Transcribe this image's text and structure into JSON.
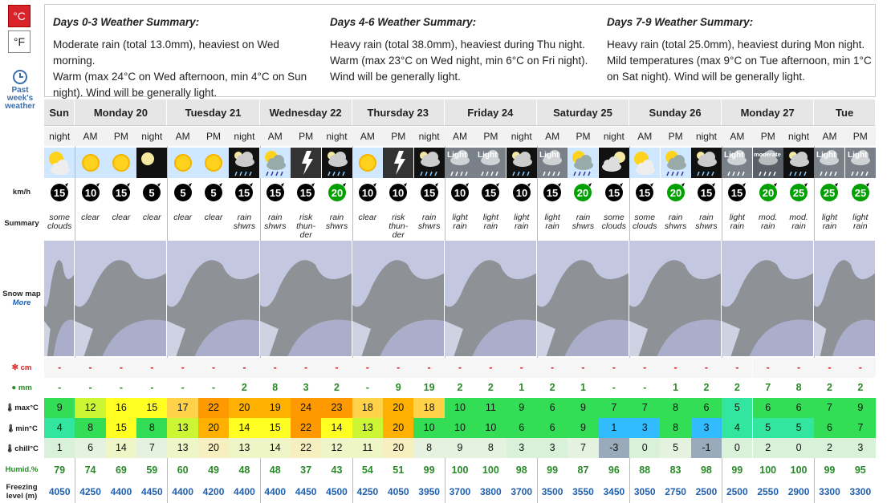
{
  "units": {
    "celsius": "°C",
    "fahrenheit": "°F"
  },
  "past_link": {
    "line1": "Past",
    "line2": "week's",
    "line3": "weather"
  },
  "row_labels": {
    "wind": "km/h",
    "summary": "Summary",
    "snowmap": "Snow map",
    "more": "More",
    "snow": "cm",
    "rain": "mm",
    "max": "max°C",
    "min": "min°C",
    "chill": "chill°C",
    "humid": "Humid.%",
    "freezing1": "Freezing",
    "freezing2": "level (m)"
  },
  "summaries": [
    {
      "title": "Days 0-3 Weather Summary:",
      "lines": [
        "Moderate rain (total 13.0mm), heaviest on Wed morning.",
        "Warm (max 24°C on Wed afternoon, min 4°C on Sun",
        "night). Wind will be generally light."
      ]
    },
    {
      "title": "Days 4-6 Weather Summary:",
      "lines": [
        "Heavy rain (total 38.0mm), heaviest during Thu night.",
        "Warm (max 23°C on Wed night, min 6°C on Fri night).",
        "Wind will be generally light."
      ]
    },
    {
      "title": "Days 7-9 Weather Summary:",
      "lines": [
        "Heavy rain (total 25.0mm), heaviest during Mon night.",
        "Mild temperatures (max 9°C on Tue afternoon, min 1°C",
        "on Sat night). Wind will be generally light."
      ]
    }
  ],
  "days": [
    {
      "name": "Sun",
      "periods": [
        "night"
      ]
    },
    {
      "name": "Monday 20",
      "periods": [
        "AM",
        "PM",
        "night"
      ]
    },
    {
      "name": "Tuesday 21",
      "periods": [
        "AM",
        "PM",
        "night"
      ]
    },
    {
      "name": "Wednesday 22",
      "periods": [
        "AM",
        "PM",
        "night"
      ]
    },
    {
      "name": "Thursday 23",
      "periods": [
        "AM",
        "PM",
        "night"
      ]
    },
    {
      "name": "Friday 24",
      "periods": [
        "AM",
        "PM",
        "night"
      ]
    },
    {
      "name": "Saturday 25",
      "periods": [
        "AM",
        "PM",
        "night"
      ]
    },
    {
      "name": "Sunday 26",
      "periods": [
        "AM",
        "PM",
        "night"
      ]
    },
    {
      "name": "Monday 27",
      "periods": [
        "AM",
        "PM",
        "night"
      ]
    },
    {
      "name": "Tue",
      "periods": [
        "AM",
        "PM"
      ]
    }
  ],
  "periods": [
    {
      "icon": "sun-cloud",
      "wind": "15",
      "summary": [
        "some",
        "clouds"
      ],
      "cm": "-",
      "mm": "-",
      "max": "9",
      "min": "4",
      "chill": "1",
      "humid": "79",
      "fz": "4050"
    },
    {
      "icon": "sun",
      "wind": "10",
      "summary": [
        "clear"
      ],
      "cm": "-",
      "mm": "-",
      "max": "12",
      "min": "8",
      "chill": "6",
      "humid": "74",
      "fz": "4250"
    },
    {
      "icon": "sun",
      "wind": "15",
      "summary": [
        "clear"
      ],
      "cm": "-",
      "mm": "-",
      "max": "16",
      "min": "15",
      "chill": "14",
      "humid": "69",
      "fz": "4400"
    },
    {
      "icon": "moon",
      "wind": "5",
      "summary": [
        "clear"
      ],
      "cm": "-",
      "mm": "-",
      "max": "15",
      "min": "8",
      "chill": "7",
      "humid": "59",
      "fz": "4450"
    },
    {
      "icon": "sun",
      "wind": "5",
      "summary": [
        "clear"
      ],
      "cm": "-",
      "mm": "-",
      "max": "17",
      "min": "13",
      "chill": "13",
      "humid": "60",
      "fz": "4400"
    },
    {
      "icon": "sun",
      "wind": "5",
      "summary": [
        "clear"
      ],
      "cm": "-",
      "mm": "-",
      "max": "22",
      "min": "20",
      "chill": "20",
      "humid": "49",
      "fz": "4200"
    },
    {
      "icon": "rain-night",
      "wind": "15",
      "summary": [
        "rain",
        "shwrs"
      ],
      "cm": "-",
      "mm": "2",
      "max": "20",
      "min": "14",
      "chill": "13",
      "humid": "48",
      "fz": "4400"
    },
    {
      "icon": "sun-rain",
      "wind": "15",
      "summary": [
        "rain",
        "shwrs"
      ],
      "cm": "-",
      "mm": "8",
      "max": "19",
      "min": "15",
      "chill": "14",
      "humid": "48",
      "fz": "4400"
    },
    {
      "icon": "thunder",
      "wind": "15",
      "summary": [
        "risk",
        "thun-",
        "der"
      ],
      "cm": "-",
      "mm": "3",
      "max": "24",
      "min": "22",
      "chill": "22",
      "humid": "37",
      "fz": "4450"
    },
    {
      "icon": "rain-night",
      "wind": "20",
      "summary": [
        "rain",
        "shwrs"
      ],
      "cm": "-",
      "mm": "2",
      "max": "23",
      "min": "14",
      "chill": "12",
      "humid": "43",
      "fz": "4500"
    },
    {
      "icon": "sun",
      "wind": "10",
      "summary": [
        "clear"
      ],
      "cm": "-",
      "mm": "-",
      "max": "18",
      "min": "13",
      "chill": "11",
      "humid": "54",
      "fz": "4250"
    },
    {
      "icon": "thunder",
      "wind": "10",
      "summary": [
        "risk",
        "thun-",
        "der"
      ],
      "cm": "-",
      "mm": "9",
      "max": "20",
      "min": "20",
      "chill": "20",
      "humid": "51",
      "fz": "4050"
    },
    {
      "icon": "rain-night",
      "wind": "15",
      "summary": [
        "rain",
        "shwrs"
      ],
      "cm": "-",
      "mm": "19",
      "max": "18",
      "min": "10",
      "chill": "8",
      "humid": "99",
      "fz": "3950"
    },
    {
      "icon": "light-rain",
      "wind": "10",
      "summary": [
        "light",
        "rain"
      ],
      "cm": "-",
      "mm": "2",
      "max": "10",
      "min": "10",
      "chill": "9",
      "humid": "100",
      "fz": "3700"
    },
    {
      "icon": "light-rain",
      "wind": "15",
      "summary": [
        "light",
        "rain"
      ],
      "cm": "-",
      "mm": "2",
      "max": "11",
      "min": "10",
      "chill": "8",
      "humid": "100",
      "fz": "3800"
    },
    {
      "icon": "rain-night",
      "wind": "10",
      "summary": [
        "light",
        "rain"
      ],
      "cm": "-",
      "mm": "1",
      "max": "9",
      "min": "6",
      "chill": "3",
      "humid": "98",
      "fz": "3700"
    },
    {
      "icon": "light-rain",
      "wind": "15",
      "summary": [
        "light",
        "rain"
      ],
      "cm": "-",
      "mm": "2",
      "max": "6",
      "min": "6",
      "chill": "3",
      "humid": "99",
      "fz": "3500"
    },
    {
      "icon": "sun-rain",
      "wind": "20",
      "summary": [
        "rain",
        "shwrs"
      ],
      "cm": "-",
      "mm": "1",
      "max": "9",
      "min": "9",
      "chill": "7",
      "humid": "87",
      "fz": "3550"
    },
    {
      "icon": "moon-cloud",
      "wind": "15",
      "summary": [
        "some",
        "clouds"
      ],
      "cm": "-",
      "mm": "-",
      "max": "7",
      "min": "1",
      "chill": "-3",
      "humid": "96",
      "fz": "3450"
    },
    {
      "icon": "sun-cloud",
      "wind": "15",
      "summary": [
        "some",
        "clouds"
      ],
      "cm": "-",
      "mm": "-",
      "max": "7",
      "min": "3",
      "chill": "0",
      "humid": "88",
      "fz": "3050"
    },
    {
      "icon": "sun-rain",
      "wind": "20",
      "summary": [
        "rain",
        "shwrs"
      ],
      "cm": "-",
      "mm": "1",
      "max": "8",
      "min": "8",
      "chill": "5",
      "humid": "83",
      "fz": "2750"
    },
    {
      "icon": "rain-night",
      "wind": "15",
      "summary": [
        "rain",
        "shwrs"
      ],
      "cm": "-",
      "mm": "2",
      "max": "6",
      "min": "3",
      "chill": "-1",
      "humid": "98",
      "fz": "2500"
    },
    {
      "icon": "light-rain",
      "wind": "15",
      "summary": [
        "light",
        "rain"
      ],
      "cm": "-",
      "mm": "2",
      "max": "5",
      "min": "4",
      "chill": "0",
      "humid": "99",
      "fz": "2500"
    },
    {
      "icon": "moderate-rain",
      "wind": "20",
      "summary": [
        "mod.",
        "rain"
      ],
      "cm": "-",
      "mm": "7",
      "max": "6",
      "min": "5",
      "chill": "2",
      "humid": "100",
      "fz": "2550"
    },
    {
      "icon": "rain-night",
      "wind": "25",
      "summary": [
        "mod.",
        "rain"
      ],
      "cm": "-",
      "mm": "8",
      "max": "6",
      "min": "5",
      "chill": "0",
      "humid": "100",
      "fz": "2900"
    },
    {
      "icon": "light-rain",
      "wind": "25",
      "summary": [
        "light",
        "rain"
      ],
      "cm": "-",
      "mm": "2",
      "max": "7",
      "min": "6",
      "chill": "2",
      "humid": "99",
      "fz": "3300"
    },
    {
      "icon": "light-rain",
      "wind": "25",
      "summary": [
        "light",
        "rain"
      ],
      "cm": "-",
      "mm": "2",
      "max": "9",
      "min": "7",
      "chill": "3",
      "humid": "95",
      "fz": "3300"
    }
  ],
  "icon_text": {
    "light": "Light",
    "moderate": "moderate"
  },
  "colors": {
    "red": "#d22",
    "green": "#2a8a2a",
    "blue": "#2060b0"
  }
}
